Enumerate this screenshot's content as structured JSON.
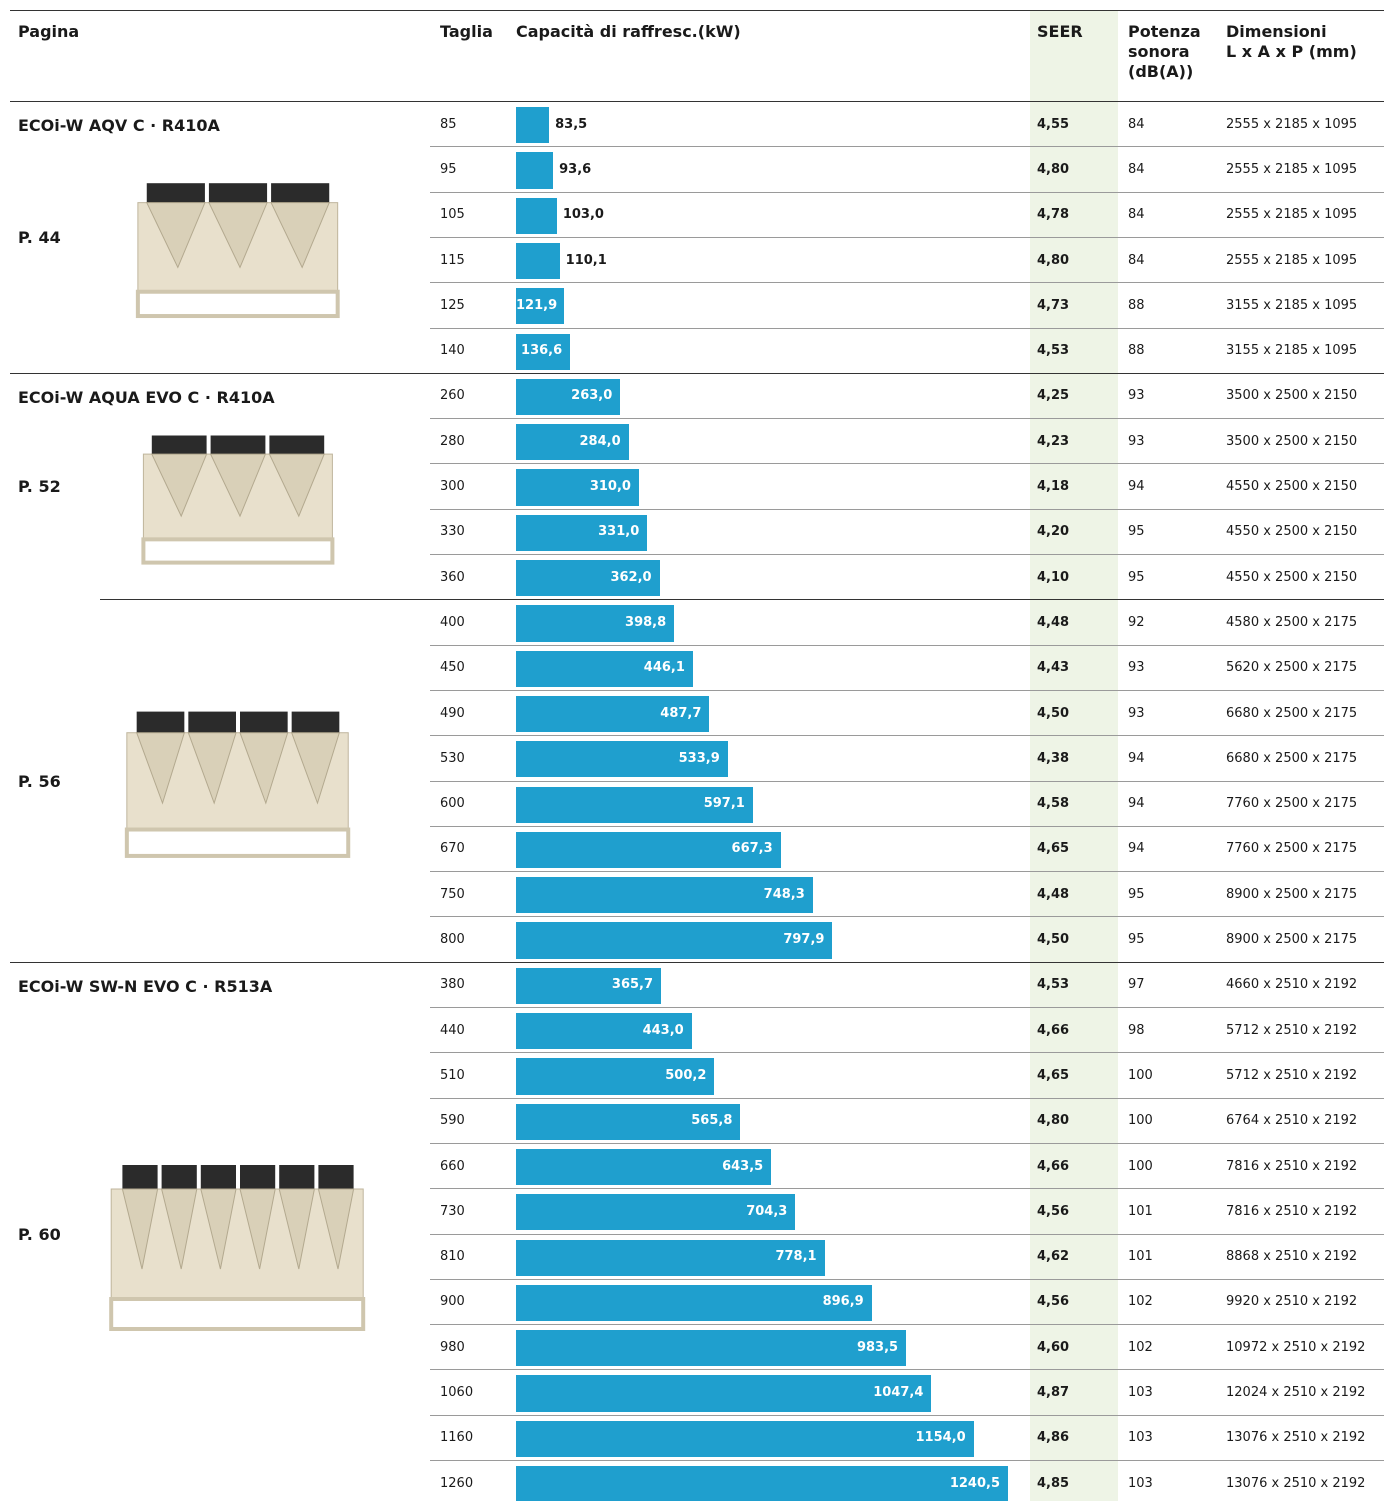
{
  "header": {
    "columns": [
      [
        "Pagina"
      ],
      [
        "Taglia"
      ],
      [
        "Capacità di raffresc.(kW)"
      ],
      [
        "SEER"
      ],
      [
        "Potenza",
        "sonora",
        "(dB(A))"
      ],
      [
        "Dimensioni",
        "L x A x P (mm)"
      ]
    ]
  },
  "groups": [
    {
      "name": "ECOi-W AQV C · R410A",
      "page": "P. 44",
      "rows": [
        {
          "size": "85",
          "capacity": {
            "value": 83.5,
            "label": "83,5"
          },
          "seer": "4,55",
          "sound": "84",
          "dimensions": "2555 x 2185 x 1095"
        },
        {
          "size": "95",
          "capacity": {
            "value": 93.6,
            "label": "93,6"
          },
          "seer": "4,80",
          "sound": "84",
          "dimensions": "2555 x 2185 x 1095"
        },
        {
          "size": "105",
          "capacity": {
            "value": 103.0,
            "label": "103,0"
          },
          "seer": "4,78",
          "sound": "84",
          "dimensions": "2555 x 2185 x 1095"
        },
        {
          "size": "115",
          "capacity": {
            "value": 110.1,
            "label": "110,1"
          },
          "seer": "4,80",
          "sound": "84",
          "dimensions": "2555 x 2185 x 1095"
        },
        {
          "size": "125",
          "capacity": {
            "value": 121.9,
            "label": "121,9"
          },
          "seer": "4,73",
          "sound": "88",
          "dimensions": "3155 x 2185 x 1095"
        },
        {
          "size": "140",
          "capacity": {
            "value": 136.6,
            "label": "136,6"
          },
          "seer": "4,53",
          "sound": "88",
          "dimensions": "3155 x 2185 x 1095"
        }
      ]
    },
    {
      "name": "ECOi-W AQUA EVO C · R410A",
      "page": "P. 52",
      "rows": [
        {
          "size": "260",
          "capacity": {
            "value": 263.0,
            "label": "263,0"
          },
          "seer": "4,25",
          "sound": "93",
          "dimensions": "3500 x 2500 x 2150"
        },
        {
          "size": "280",
          "capacity": {
            "value": 284.0,
            "label": "284,0"
          },
          "seer": "4,23",
          "sound": "93",
          "dimensions": "3500 x 2500 x 2150"
        },
        {
          "size": "300",
          "capacity": {
            "value": 310.0,
            "label": "310,0"
          },
          "seer": "4,18",
          "sound": "94",
          "dimensions": "4550 x 2500 x 2150"
        },
        {
          "size": "330",
          "capacity": {
            "value": 331.0,
            "label": "331,0"
          },
          "seer": "4,20",
          "sound": "95",
          "dimensions": "4550 x 2500 x 2150"
        },
        {
          "size": "360",
          "capacity": {
            "value": 362.0,
            "label": "362,0"
          },
          "seer": "4,10",
          "sound": "95",
          "dimensions": "4550 x 2500 x 2150"
        }
      ]
    },
    {
      "page": "P. 56",
      "rows": [
        {
          "size": "400",
          "capacity": {
            "value": 398.8,
            "label": "398,8"
          },
          "seer": "4,48",
          "sound": "92",
          "dimensions": "4580 x 2500 x 2175"
        },
        {
          "size": "450",
          "capacity": {
            "value": 446.1,
            "label": "446,1"
          },
          "seer": "4,43",
          "sound": "93",
          "dimensions": "5620 x 2500 x 2175"
        },
        {
          "size": "490",
          "capacity": {
            "value": 487.7,
            "label": "487,7"
          },
          "seer": "4,50",
          "sound": "93",
          "dimensions": "6680 x 2500 x 2175"
        },
        {
          "size": "530",
          "capacity": {
            "value": 533.9,
            "label": "533,9"
          },
          "seer": "4,38",
          "sound": "94",
          "dimensions": "6680 x 2500 x 2175"
        },
        {
          "size": "600",
          "capacity": {
            "value": 597.1,
            "label": "597,1"
          },
          "seer": "4,58",
          "sound": "94",
          "dimensions": "7760 x 2500 x 2175"
        },
        {
          "size": "670",
          "capacity": {
            "value": 667.3,
            "label": "667,3"
          },
          "seer": "4,65",
          "sound": "94",
          "dimensions": "7760 x 2500 x 2175"
        },
        {
          "size": "750",
          "capacity": {
            "value": 748.3,
            "label": "748,3"
          },
          "seer": "4,48",
          "sound": "95",
          "dimensions": "8900 x 2500 x 2175"
        },
        {
          "size": "800",
          "capacity": {
            "value": 797.9,
            "label": "797,9"
          },
          "seer": "4,50",
          "sound": "95",
          "dimensions": "8900 x 2500 x 2175"
        }
      ]
    },
    {
      "name": "ECOi-W SW-N EVO C · R513A",
      "page": "P. 60",
      "rows": [
        {
          "size": "380",
          "capacity": {
            "value": 365.7,
            "label": "365,7"
          },
          "seer": "4,53",
          "sound": "97",
          "dimensions": "4660 x 2510 x 2192"
        },
        {
          "size": "440",
          "capacity": {
            "value": 443.0,
            "label": "443,0"
          },
          "seer": "4,66",
          "sound": "98",
          "dimensions": "5712 x 2510 x 2192"
        },
        {
          "size": "510",
          "capacity": {
            "value": 500.2,
            "label": "500,2"
          },
          "seer": "4,65",
          "sound": "100",
          "dimensions": "5712 x 2510 x 2192"
        },
        {
          "size": "590",
          "capacity": {
            "value": 565.8,
            "label": "565,8"
          },
          "seer": "4,80",
          "sound": "100",
          "dimensions": "6764 x 2510 x 2192"
        },
        {
          "size": "660",
          "capacity": {
            "value": 643.5,
            "label": "643,5"
          },
          "seer": "4,66",
          "sound": "100",
          "dimensions": "7816 x 2510 x 2192"
        },
        {
          "size": "730",
          "capacity": {
            "value": 704.3,
            "label": "704,3"
          },
          "seer": "4,56",
          "sound": "101",
          "dimensions": "7816 x 2510 x 2192"
        },
        {
          "size": "810",
          "capacity": {
            "value": 778.1,
            "label": "778,1"
          },
          "seer": "4,62",
          "sound": "101",
          "dimensions": "8868 x 2510 x 2192"
        },
        {
          "size": "900",
          "capacity": {
            "value": 896.9,
            "label": "896,9"
          },
          "seer": "4,56",
          "sound": "102",
          "dimensions": "9920 x 2510 x 2192"
        },
        {
          "size": "980",
          "capacity": {
            "value": 983.5,
            "label": "983,5"
          },
          "seer": "4,60",
          "sound": "102",
          "dimensions": "10972 x 2510 x 2192"
        },
        {
          "size": "1060",
          "capacity": {
            "value": 1047.4,
            "label": "1047,4"
          },
          "seer": "4,87",
          "sound": "103",
          "dimensions": "12024 x 2510 x 2192"
        },
        {
          "size": "1160",
          "capacity": {
            "value": 1154.0,
            "label": "1154,0"
          },
          "seer": "4,86",
          "sound": "103",
          "dimensions": "13076 x 2510 x 2192"
        },
        {
          "size": "1260",
          "capacity": {
            "value": 1240.5,
            "label": "1240,5"
          },
          "seer": "4,85",
          "sound": "103",
          "dimensions": "13076 x 2510 x 2192"
        }
      ]
    }
  ]
}
